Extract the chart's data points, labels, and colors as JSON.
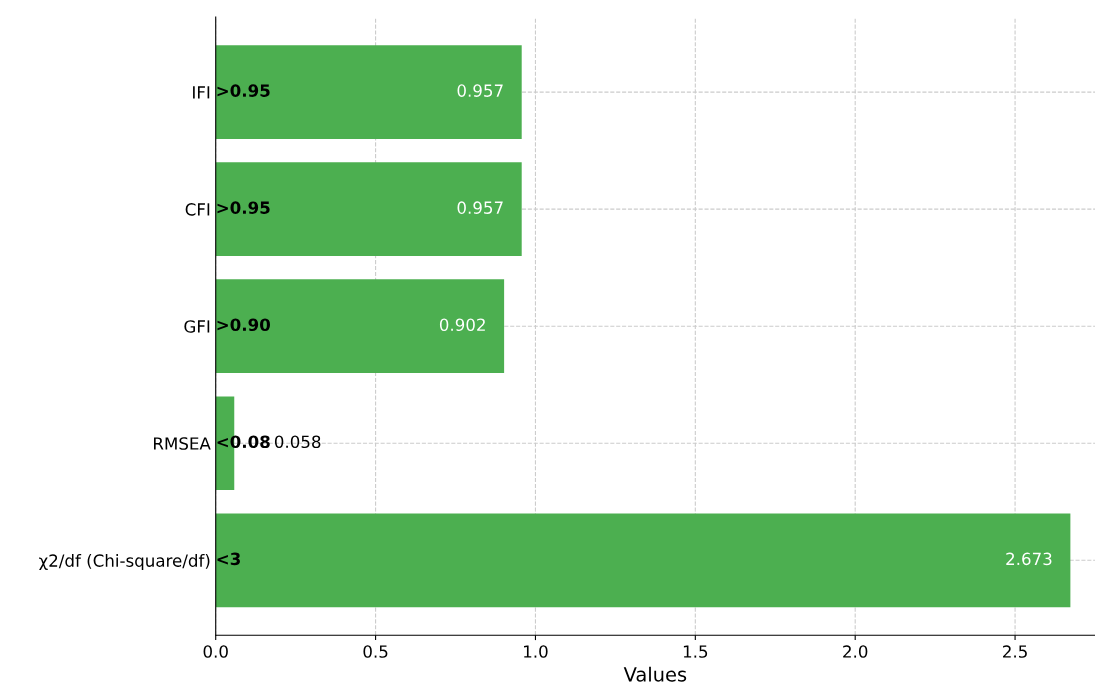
{
  "chart_data": {
    "type": "bar",
    "orientation": "horizontal",
    "xlabel": "Values",
    "categories": [
      "IFI",
      "CFI",
      "GFI",
      "RMSEA",
      "χ2/df (Chi-square/df)"
    ],
    "values": [
      0.957,
      0.957,
      0.902,
      0.058,
      2.673
    ],
    "value_labels": [
      "0.957",
      "0.957",
      "0.902",
      "0.058",
      "2.673"
    ],
    "color": "#4caf50",
    "xlim": [
      0,
      2.75
    ],
    "xticks": [
      {
        "value": 0,
        "label": "0.0"
      },
      {
        "value": 0.5,
        "label": "0.5"
      },
      {
        "value": 1,
        "label": "1.0"
      },
      {
        "value": 1.5,
        "label": "1.5"
      },
      {
        "value": 2,
        "label": "2.0"
      },
      {
        "value": 2.5,
        "label": "2.5"
      }
    ],
    "grid": true,
    "line_style": "dashed",
    "annotations": [
      ">0.95",
      ">0.95",
      ">0.90",
      "<0.08",
      "<3"
    ]
  }
}
